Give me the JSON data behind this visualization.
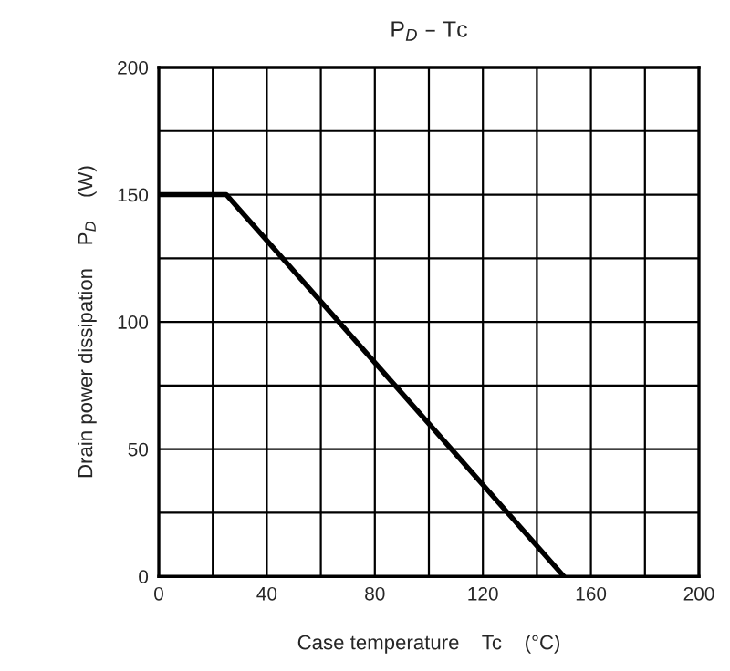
{
  "chart_data": {
    "type": "line",
    "title": "P$_{D}$ – Tc",
    "xlabel": "Case temperature    Tc    (°C)",
    "ylabel": "Drain power dissipation    P$_{D}$    (W)",
    "x": [
      0,
      25,
      150
    ],
    "series": [
      {
        "color": "#000000",
        "values": [
          150,
          150,
          0
        ]
      }
    ],
    "xlim": [
      0,
      200
    ],
    "ylim": [
      0,
      200
    ],
    "xticks": [
      0,
      {
        "value": 20,
        "label": null
      },
      40,
      {
        "value": 60,
        "label": null
      },
      80,
      {
        "value": 100,
        "label": null
      },
      120,
      {
        "value": 140,
        "label": null
      },
      160,
      {
        "value": 180,
        "label": null
      },
      200
    ],
    "yticks": [
      0,
      {
        "value": 25,
        "label": null
      },
      50,
      {
        "value": 75,
        "label": null
      },
      100,
      {
        "value": 125,
        "label": null
      },
      150,
      {
        "value": 175,
        "label": null
      },
      200
    ],
    "grid": true,
    "marker": "none",
    "line_style": "solid"
  }
}
